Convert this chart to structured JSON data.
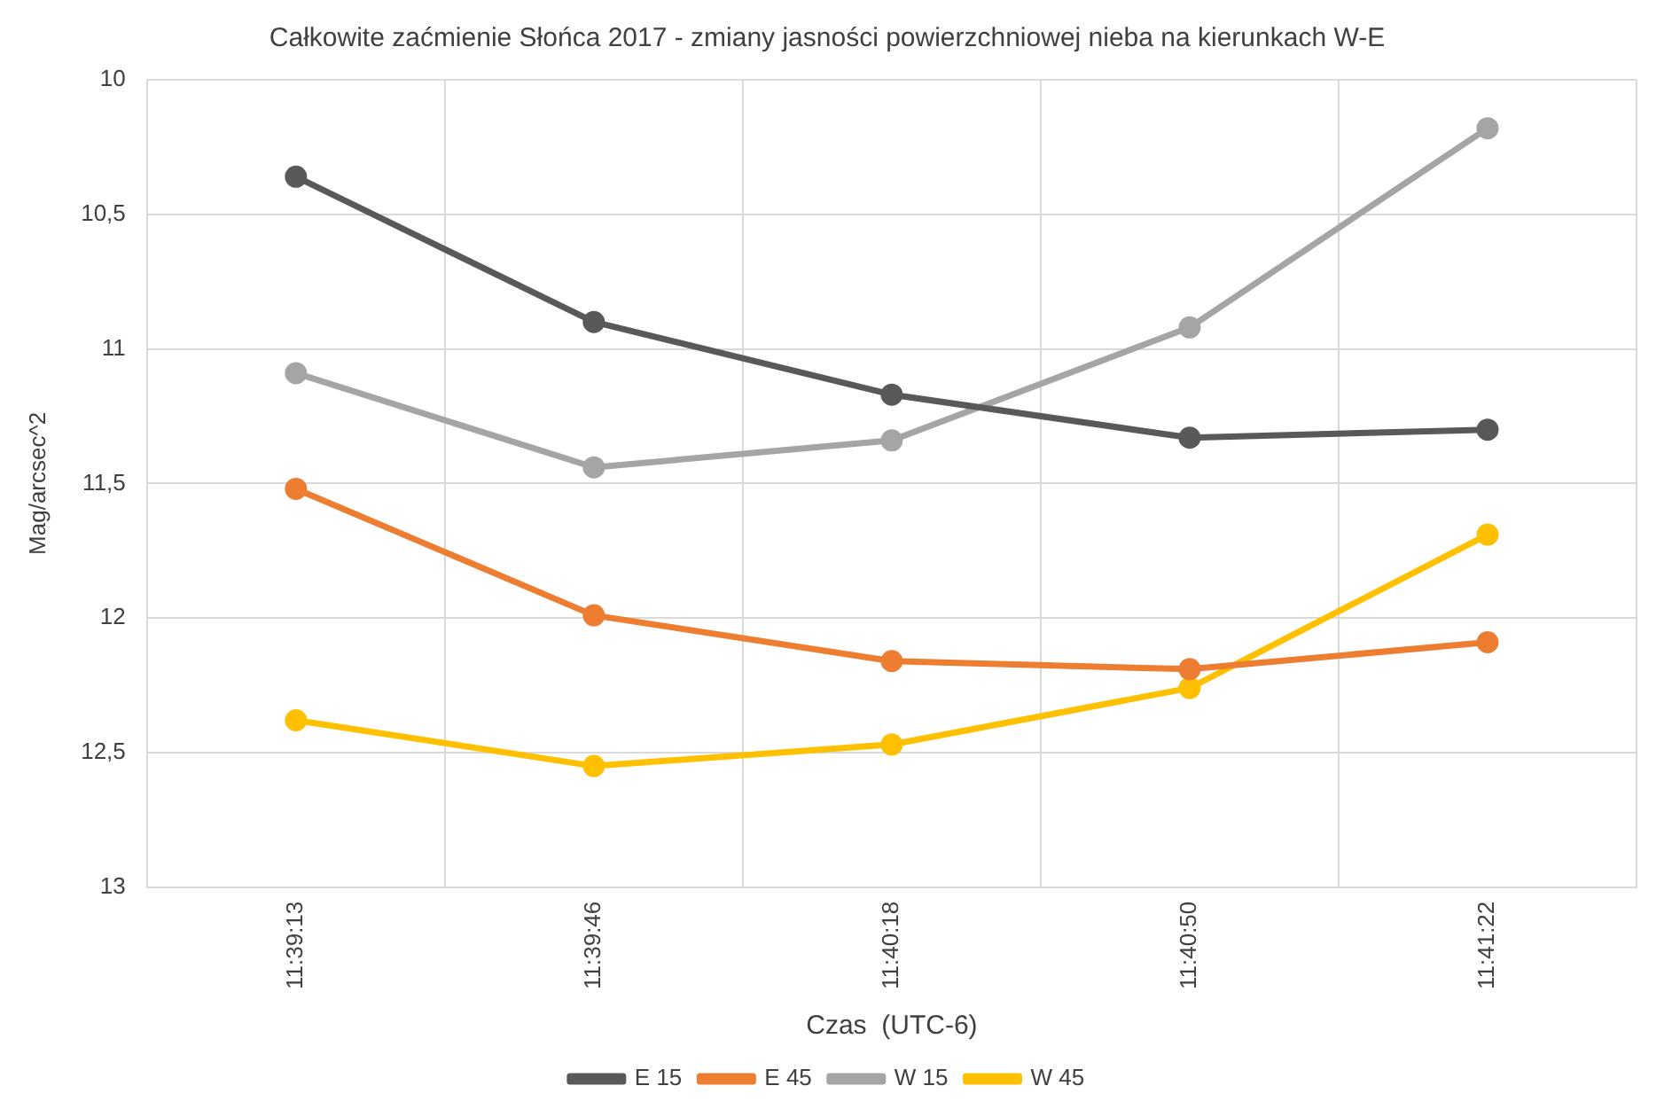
{
  "chart_data": {
    "type": "line",
    "title": "Całkowite zaćmienie Słońca 2017 - zmiany jasności powierzchniowej nieba na kierunkach W-E",
    "xlabel": "Czas  (UTC-6)",
    "ylabel": "Mag/arcsec^2",
    "categories": [
      "11:39:13",
      "11:39:46",
      "11:40:18",
      "11:40:50",
      "11:41:22"
    ],
    "series": [
      {
        "name": "E 15",
        "color": "#595959",
        "values": [
          10.36,
          10.9,
          11.17,
          11.33,
          11.3
        ]
      },
      {
        "name": "E 45",
        "color": "#ed7d31",
        "values": [
          11.52,
          11.99,
          12.16,
          12.19,
          12.09
        ]
      },
      {
        "name": "W 15",
        "color": "#a5a5a5",
        "values": [
          11.09,
          11.44,
          11.34,
          10.92,
          10.18
        ]
      },
      {
        "name": "W 45",
        "color": "#ffc000",
        "values": [
          12.38,
          12.55,
          12.47,
          12.26,
          11.69
        ]
      }
    ],
    "ylim": [
      13,
      10
    ],
    "yticks": [
      {
        "value": 10,
        "label": "10"
      },
      {
        "value": 10.5,
        "label": "10,5"
      },
      {
        "value": 11,
        "label": "11"
      },
      {
        "value": 11.5,
        "label": "11,5"
      },
      {
        "value": 12,
        "label": "12"
      },
      {
        "value": 12.5,
        "label": "12,5"
      },
      {
        "value": 13,
        "label": "13"
      }
    ],
    "grid": true,
    "legend": "bottom",
    "marker": "circle",
    "line_style": "solid"
  }
}
